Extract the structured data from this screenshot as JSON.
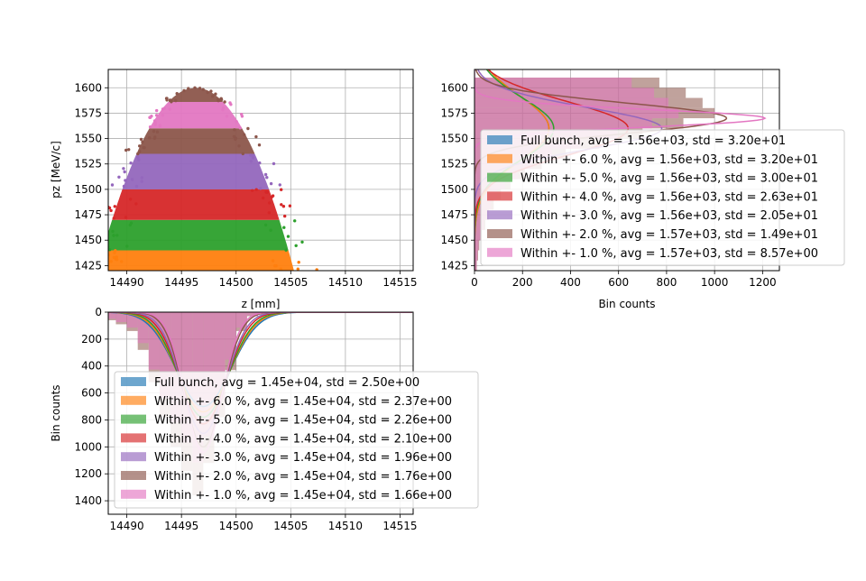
{
  "colors": {
    "c0": "#1f77b4",
    "c1": "#ff7f0e",
    "c2": "#2ca02c",
    "c3": "#d62728",
    "c4": "#9467bd",
    "c5": "#8c564b",
    "c6": "#e377c2",
    "grid": "#b0b0b0"
  },
  "chart_data": [
    {
      "type": "scatter",
      "xlabel": "z [mm]",
      "ylabel": "pz [MeV/c]",
      "xlim": [
        14488.3,
        14516.2
      ],
      "ylim": [
        1420,
        1618
      ],
      "x_ticks": [
        "14490",
        "14495",
        "14500",
        "14505",
        "14510",
        "14515"
      ],
      "y_ticks": [
        "1425",
        "1450",
        "1475",
        "1500",
        "1525",
        "1550",
        "1575",
        "1600"
      ],
      "grid": true,
      "envelope": {
        "z_center": 14496.3,
        "pz_peak": 1600,
        "pz_min": 1420,
        "z_halfwidth_at_1420": 9
      },
      "bands": [
        {
          "series": "Within +- 6.0 %",
          "pz_range": [
            1420,
            1440
          ],
          "color_key": "c1"
        },
        {
          "series": "Within +- 5.0 %",
          "pz_range": [
            1440,
            1470
          ],
          "color_key": "c2"
        },
        {
          "series": "Within +- 4.0 %",
          "pz_range": [
            1470,
            1500
          ],
          "color_key": "c3"
        },
        {
          "series": "Within +- 3.0 %",
          "pz_range": [
            1500,
            1535
          ],
          "color_key": "c4"
        },
        {
          "series": "Within +- 2.0 %",
          "pz_range": [
            1535,
            1560
          ],
          "color_key": "c5"
        },
        {
          "series": "Within +- 1.0 %",
          "pz_range": [
            1560,
            1586
          ],
          "color_key": "c6"
        },
        {
          "series": "Within +- 2.0 %",
          "pz_range": [
            1586,
            1600
          ],
          "color_key": "c5"
        }
      ]
    },
    {
      "type": "bar",
      "orientation": "horizontal histogram",
      "xlabel": "Bin counts",
      "ylabel": "",
      "xlim": [
        0,
        1270
      ],
      "ylim": [
        1420,
        1618
      ],
      "x_ticks": [
        "0",
        "200",
        "400",
        "600",
        "800",
        "1000",
        "1200"
      ],
      "y_ticks": [
        "1425",
        "1450",
        "1475",
        "1500",
        "1525",
        "1550",
        "1575",
        "1600"
      ],
      "grid": true,
      "legend_position": "right",
      "legend": [
        {
          "label": "Full bunch, avg = 1.56e+03, std = 3.20e+01",
          "color_key": "c0"
        },
        {
          "label": "Within +- 6.0 %, avg = 1.56e+03, std = 3.20e+01",
          "color_key": "c1"
        },
        {
          "label": "Within +- 5.0 %, avg = 1.56e+03, std = 3.00e+01",
          "color_key": "c2"
        },
        {
          "label": "Within +- 4.0 %, avg = 1.56e+03, std = 2.63e+01",
          "color_key": "c3"
        },
        {
          "label": "Within +- 3.0 %, avg = 1.56e+03, std = 2.05e+01",
          "color_key": "c4"
        },
        {
          "label": "Within +- 2.0 %, avg = 1.57e+03, std = 1.49e+01",
          "color_key": "c5"
        },
        {
          "label": "Within +- 1.0 %, avg = 1.57e+03, std = 8.57e+00",
          "color_key": "c6"
        }
      ],
      "histogram": {
        "pz_bins": [
          1420,
          1430,
          1440,
          1450,
          1460,
          1470,
          1480,
          1490,
          1500,
          1510,
          1520,
          1530,
          1540,
          1550,
          1560,
          1570,
          1580,
          1590,
          1600,
          1610
        ],
        "counts": [
          10,
          15,
          20,
          30,
          45,
          60,
          80,
          110,
          150,
          210,
          280,
          380,
          520,
          700,
          870,
          1000,
          950,
          880,
          770,
          0
        ]
      },
      "fits": [
        {
          "series": "Full bunch",
          "mean": 1560,
          "std": 32.0,
          "peak": 310,
          "color_key": "c0"
        },
        {
          "series": "Within +- 6.0 %",
          "mean": 1560,
          "std": 32.0,
          "peak": 310,
          "color_key": "c1"
        },
        {
          "series": "Within +- 5.0 %",
          "mean": 1560,
          "std": 30.0,
          "peak": 330,
          "color_key": "c2"
        },
        {
          "series": "Within +- 4.0 %",
          "mean": 1560,
          "std": 26.3,
          "peak": 640,
          "color_key": "c3"
        },
        {
          "series": "Within +- 3.0 %",
          "mean": 1560,
          "std": 20.5,
          "peak": 780,
          "color_key": "c4"
        },
        {
          "series": "Within +- 2.0 %",
          "mean": 1570,
          "std": 14.9,
          "peak": 1050,
          "color_key": "c5"
        },
        {
          "series": "Within +- 1.0 %",
          "mean": 1570,
          "std": 8.57,
          "peak": 1210,
          "color_key": "c6"
        }
      ]
    },
    {
      "type": "bar",
      "orientation": "vertical histogram, inverted y",
      "xlabel": "",
      "ylabel": "Bin counts",
      "xlim": [
        14488.3,
        14516.2
      ],
      "ylim": [
        1500,
        0
      ],
      "x_ticks": [
        "14490",
        "14495",
        "14500",
        "14505",
        "14510",
        "14515"
      ],
      "y_ticks": [
        "0",
        "200",
        "400",
        "600",
        "800",
        "1000",
        "1200",
        "1400"
      ],
      "grid": true,
      "legend_position": "lower-left",
      "legend": [
        {
          "label": "Full bunch, avg = 1.45e+04, std = 2.50e+00",
          "color_key": "c0"
        },
        {
          "label": "Within +- 6.0 %, avg = 1.45e+04, std = 2.37e+00",
          "color_key": "c1"
        },
        {
          "label": "Within +- 5.0 %, avg = 1.45e+04, std = 2.26e+00",
          "color_key": "c2"
        },
        {
          "label": "Within +- 4.0 %, avg = 1.45e+04, std = 2.10e+00",
          "color_key": "c3"
        },
        {
          "label": "Within +- 3.0 %, avg = 1.45e+04, std = 1.96e+00",
          "color_key": "c4"
        },
        {
          "label": "Within +- 2.0 %, avg = 1.45e+04, std = 1.76e+00",
          "color_key": "c5"
        },
        {
          "label": "Within +- 1.0 %, avg = 1.45e+04, std = 1.66e+00",
          "color_key": "c6"
        }
      ],
      "histogram": {
        "z_bins": [
          14488.5,
          14489.5,
          14490.5,
          14491.5,
          14492.5,
          14493.5,
          14494.5,
          14495.5,
          14496.5,
          14497.5,
          14498.5,
          14499.5,
          14500.5,
          14501.5,
          14502.5
        ],
        "counts": [
          60,
          90,
          140,
          280,
          520,
          780,
          1000,
          1180,
          1360,
          1120,
          780,
          430,
          140,
          30,
          10
        ]
      },
      "fits": [
        {
          "series": "Full bunch",
          "mean": 14497.0,
          "std": 2.5,
          "peak": 700,
          "color_key": "c0"
        },
        {
          "series": "Within +- 6.0 %",
          "mean": 14497.0,
          "std": 2.37,
          "peak": 740,
          "color_key": "c1"
        },
        {
          "series": "Within +- 5.0 %",
          "mean": 14497.0,
          "std": 2.26,
          "peak": 780,
          "color_key": "c2"
        },
        {
          "series": "Within +- 4.0 %",
          "mean": 14497.0,
          "std": 2.1,
          "peak": 830,
          "color_key": "c3"
        },
        {
          "series": "Within +- 3.0 %",
          "mean": 14497.0,
          "std": 1.96,
          "peak": 900,
          "color_key": "c4"
        },
        {
          "series": "Within +- 2.0 %",
          "mean": 14497.0,
          "std": 1.76,
          "peak": 1000,
          "color_key": "c5"
        },
        {
          "series": "Within +- 1.0 %",
          "mean": 14497.0,
          "std": 1.66,
          "peak": 1040,
          "color_key": "c6"
        }
      ]
    }
  ]
}
